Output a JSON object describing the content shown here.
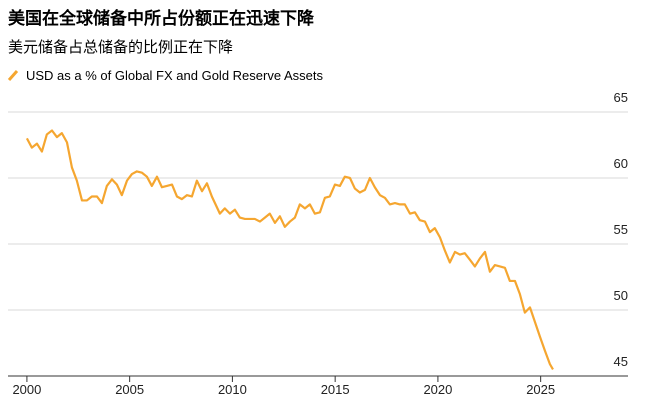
{
  "chart_data": {
    "type": "line",
    "title": "美国在全球储备中所占份额正在迅速下降",
    "subtitle": "美元储备占总储备的比例正在下降",
    "x": [
      2000,
      2000.24,
      2000.49,
      2000.73,
      2000.97,
      2001.22,
      2001.46,
      2001.7,
      2001.95,
      2002.19,
      2002.43,
      2002.68,
      2002.92,
      2003.16,
      2003.41,
      2003.65,
      2003.89,
      2004.14,
      2004.38,
      2004.62,
      2004.87,
      2005.11,
      2005.35,
      2005.6,
      2005.84,
      2006.08,
      2006.33,
      2006.57,
      2006.81,
      2007.06,
      2007.3,
      2007.54,
      2007.79,
      2008.03,
      2008.27,
      2008.52,
      2008.76,
      2009,
      2009.39,
      2009.63,
      2009.88,
      2010.12,
      2010.36,
      2010.61,
      2010.85,
      2011.09,
      2011.34,
      2011.58,
      2011.82,
      2012.07,
      2012.31,
      2012.55,
      2012.8,
      2013.04,
      2013.28,
      2013.53,
      2013.77,
      2014.01,
      2014.26,
      2014.5,
      2014.74,
      2014.99,
      2015.23,
      2015.47,
      2015.72,
      2015.96,
      2016.2,
      2016.45,
      2016.69,
      2016.93,
      2017.18,
      2017.42,
      2017.66,
      2017.91,
      2018.15,
      2018.39,
      2018.64,
      2018.88,
      2019.12,
      2019.37,
      2019.61,
      2019.85,
      2020.1,
      2020.34,
      2020.58,
      2020.83,
      2021.07,
      2021.31,
      2021.56,
      2021.8,
      2022.04,
      2022.29,
      2022.53,
      2022.77,
      2023.02,
      2023.26,
      2023.5,
      2023.75,
      2023.99,
      2024.23,
      2024.48,
      2024.72,
      2024.96,
      2025.21,
      2025.45,
      2025.6
    ],
    "series": [
      {
        "name": "USD as a % of Global FX and Gold Reserve Assets",
        "color": "#f5a630",
        "values": [
          63.0,
          62.3,
          62.6,
          62.0,
          63.3,
          63.6,
          63.1,
          63.4,
          62.7,
          60.8,
          59.8,
          58.3,
          58.3,
          58.6,
          58.6,
          58.1,
          59.4,
          59.9,
          59.5,
          58.7,
          59.8,
          60.3,
          60.5,
          60.4,
          60.1,
          59.4,
          60.1,
          59.3,
          59.4,
          59.5,
          58.6,
          58.4,
          58.7,
          58.6,
          59.8,
          59.0,
          59.6,
          58.6,
          57.3,
          57.7,
          57.3,
          57.6,
          57.0,
          56.9,
          56.9,
          56.9,
          56.7,
          57.0,
          57.3,
          56.6,
          57.1,
          56.3,
          56.7,
          57.0,
          58.0,
          57.7,
          58.0,
          57.3,
          57.4,
          58.5,
          58.6,
          59.5,
          59.4,
          60.1,
          60.0,
          59.2,
          58.9,
          59.1,
          60.0,
          59.3,
          58.7,
          58.5,
          58.0,
          58.1,
          58.0,
          58.0,
          57.3,
          57.4,
          56.8,
          56.7,
          55.9,
          56.2,
          55.5,
          54.5,
          53.6,
          54.4,
          54.2,
          54.3,
          53.8,
          53.3,
          53.9,
          54.4,
          52.9,
          53.4,
          53.3,
          53.2,
          52.2,
          52.2,
          51.2,
          49.8,
          50.2,
          49.1,
          48.0,
          46.9,
          45.9,
          45.5
        ]
      }
    ],
    "xlim": [
      1999.08,
      2029.25
    ],
    "xticks": [
      2000,
      2005,
      2010,
      2015,
      2020,
      2025
    ],
    "ylim": [
      45,
      65
    ],
    "yticks": [
      45,
      50,
      55,
      60,
      65
    ],
    "grid": true
  }
}
